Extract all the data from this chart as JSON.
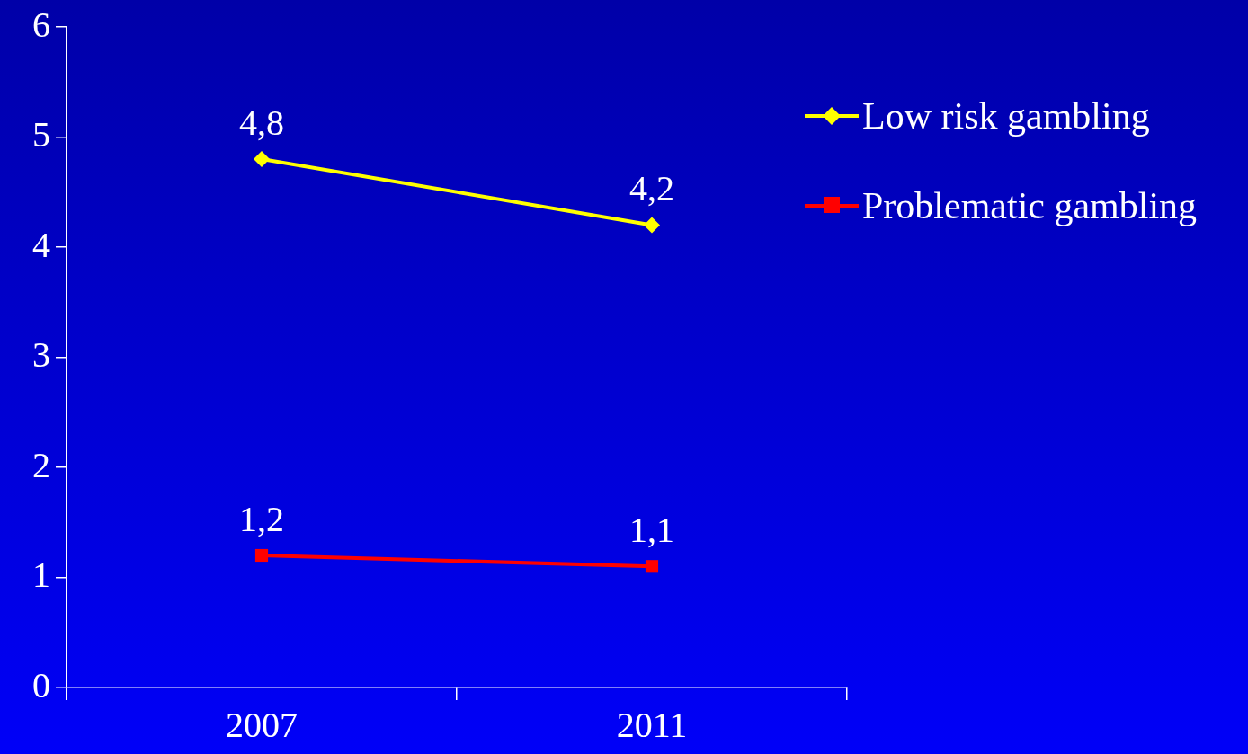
{
  "chart_data": {
    "type": "line",
    "categories": [
      "2007",
      "2011"
    ],
    "series": [
      {
        "name": "Low risk gambling",
        "color": "#ffff00",
        "values": [
          4.8,
          4.2
        ],
        "marker": "diamond",
        "value_labels": [
          "4,8",
          "4,2"
        ]
      },
      {
        "name": "Problematic gambling",
        "color": "#ff0000",
        "values": [
          1.2,
          1.1
        ],
        "marker": "square",
        "value_labels": [
          "1,2",
          "1,1"
        ]
      }
    ],
    "ylim": [
      0,
      6
    ],
    "yticks": [
      0,
      1,
      2,
      3,
      4,
      5,
      6
    ],
    "grid": false,
    "legend": "top right"
  }
}
